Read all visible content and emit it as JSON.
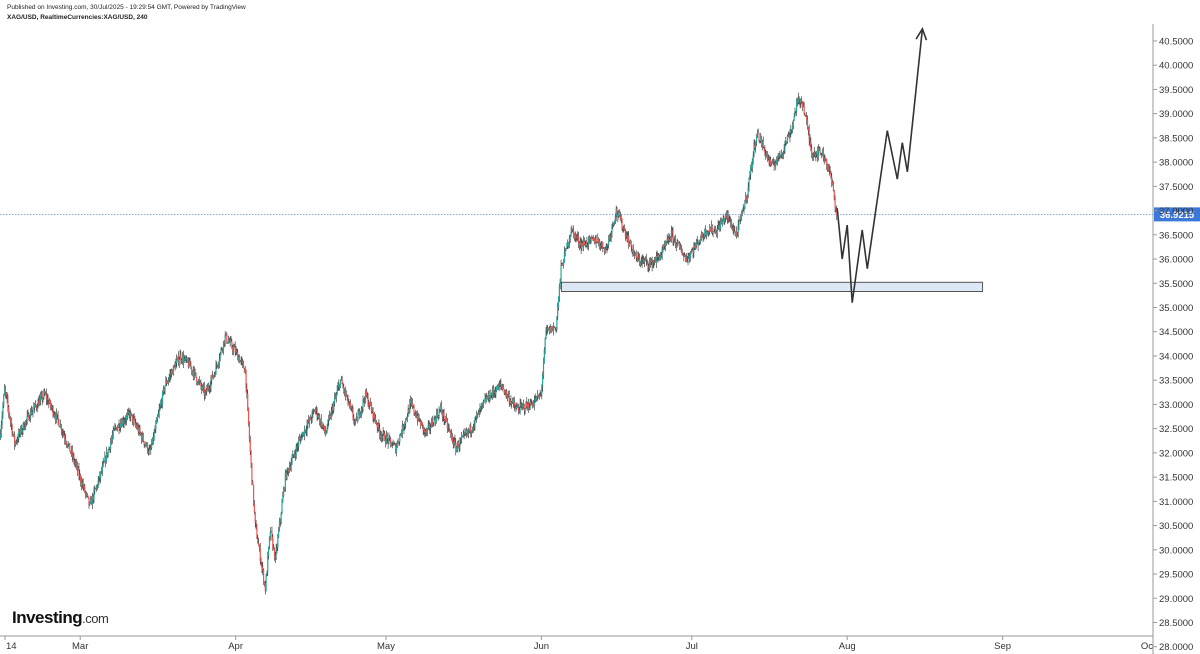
{
  "header": {
    "published": "Published on Investing.com, 30/Jul/2025 - 19:29:54 GMT, Powered by TradingView",
    "symbol_line": "XAG/USD, RealtimeCurrencies:XAG/USD, 240"
  },
  "brand": {
    "name": "Investing",
    "domain": ".com"
  },
  "chart_data": {
    "type": "candlestick",
    "title": "",
    "xlabel": "",
    "ylabel": "",
    "ylim": [
      27.85,
      40.85
    ],
    "y_ticks": [
      "40.5000",
      "40.0000",
      "39.5000",
      "39.0000",
      "38.5000",
      "38.0000",
      "37.5000",
      "37.0000",
      "36.5000",
      "36.0000",
      "35.5000",
      "35.0000",
      "34.5000",
      "34.0000",
      "33.5000",
      "33.0000",
      "32.5000",
      "32.0000",
      "31.5000",
      "31.0000",
      "30.5000",
      "30.0000",
      "29.5000",
      "29.0000",
      "28.5000",
      "28.0000"
    ],
    "x_ticks": [
      "14",
      "Mar",
      "Apr",
      "May",
      "Jun",
      "Jul",
      "Aug",
      "Sep",
      "Oc"
    ],
    "x_tick_dates": [
      "2025-02-14",
      "2025-03-01",
      "2025-04-01",
      "2025-05-01",
      "2025-06-01",
      "2025-07-01",
      "2025-08-01",
      "2025-09-01",
      "2025-10-01"
    ],
    "x_range": [
      "2025-02-13",
      "2025-10-01"
    ],
    "current_price": "36.9215",
    "current_price_value": 36.9215,
    "grid": false,
    "colors": {
      "up": "#26a69a",
      "down": "#ef5350",
      "wick": "#222222",
      "current": "#5b8fd6",
      "projection": "#333333",
      "zone_fill": "#dde8f6",
      "zone_border": "#555555"
    },
    "price_path": [
      [
        "2025-02-13",
        32.3
      ],
      [
        "2025-02-14",
        33.3
      ],
      [
        "2025-02-16",
        32.2
      ],
      [
        "2025-02-19",
        32.8
      ],
      [
        "2025-02-22",
        33.2
      ],
      [
        "2025-02-25",
        32.6
      ],
      [
        "2025-02-28",
        31.8
      ],
      [
        "2025-03-03",
        30.9
      ],
      [
        "2025-03-05",
        31.5
      ],
      [
        "2025-03-08",
        32.5
      ],
      [
        "2025-03-11",
        32.8
      ],
      [
        "2025-03-15",
        32.0
      ],
      [
        "2025-03-18",
        33.4
      ],
      [
        "2025-03-21",
        34.0
      ],
      [
        "2025-03-23",
        33.8
      ],
      [
        "2025-03-26",
        33.2
      ],
      [
        "2025-03-28",
        33.7
      ],
      [
        "2025-03-30",
        34.4
      ],
      [
        "2025-04-01",
        34.1
      ],
      [
        "2025-04-03",
        33.7
      ],
      [
        "2025-04-04",
        32.0
      ],
      [
        "2025-04-05",
        30.5
      ],
      [
        "2025-04-07",
        29.2
      ],
      [
        "2025-04-08",
        30.4
      ],
      [
        "2025-04-09",
        29.8
      ],
      [
        "2025-04-11",
        31.5
      ],
      [
        "2025-04-14",
        32.3
      ],
      [
        "2025-04-17",
        32.9
      ],
      [
        "2025-04-19",
        32.4
      ],
      [
        "2025-04-22",
        33.5
      ],
      [
        "2025-04-25",
        32.6
      ],
      [
        "2025-04-27",
        33.2
      ],
      [
        "2025-04-30",
        32.4
      ],
      [
        "2025-05-03",
        32.1
      ],
      [
        "2025-05-06",
        33.0
      ],
      [
        "2025-05-09",
        32.4
      ],
      [
        "2025-05-12",
        32.9
      ],
      [
        "2025-05-15",
        32.1
      ],
      [
        "2025-05-18",
        32.5
      ],
      [
        "2025-05-21",
        33.1
      ],
      [
        "2025-05-24",
        33.4
      ],
      [
        "2025-05-27",
        32.9
      ],
      [
        "2025-05-30",
        33.0
      ],
      [
        "2025-06-01",
        33.2
      ],
      [
        "2025-06-02",
        34.5
      ],
      [
        "2025-06-04",
        34.6
      ],
      [
        "2025-06-05",
        35.8
      ],
      [
        "2025-06-07",
        36.6
      ],
      [
        "2025-06-09",
        36.3
      ],
      [
        "2025-06-12",
        36.4
      ],
      [
        "2025-06-14",
        36.2
      ],
      [
        "2025-06-16",
        37.0
      ],
      [
        "2025-06-18",
        36.5
      ],
      [
        "2025-06-20",
        36.0
      ],
      [
        "2025-06-23",
        35.9
      ],
      [
        "2025-06-25",
        36.1
      ],
      [
        "2025-06-27",
        36.5
      ],
      [
        "2025-06-30",
        36.0
      ],
      [
        "2025-07-02",
        36.3
      ],
      [
        "2025-07-04",
        36.6
      ],
      [
        "2025-07-06",
        36.6
      ],
      [
        "2025-07-08",
        36.9
      ],
      [
        "2025-07-10",
        36.5
      ],
      [
        "2025-07-12",
        37.3
      ],
      [
        "2025-07-14",
        38.6
      ],
      [
        "2025-07-15",
        38.4
      ],
      [
        "2025-07-17",
        37.9
      ],
      [
        "2025-07-19",
        38.2
      ],
      [
        "2025-07-21",
        38.7
      ],
      [
        "2025-07-22",
        39.2
      ],
      [
        "2025-07-23",
        39.3
      ],
      [
        "2025-07-24",
        38.8
      ],
      [
        "2025-07-25",
        38.2
      ],
      [
        "2025-07-27",
        38.2
      ],
      [
        "2025-07-28",
        38.0
      ],
      [
        "2025-07-29",
        37.6
      ],
      [
        "2025-07-30",
        36.92
      ]
    ],
    "support_zone": {
      "low": 35.33,
      "high": 35.52,
      "start": "2025-06-05",
      "end": "2025-08-28"
    },
    "projection": [
      [
        "2025-07-30",
        37.05
      ],
      [
        "2025-07-31",
        36.0
      ],
      [
        "2025-08-01",
        36.7
      ],
      [
        "2025-08-02",
        35.1
      ],
      [
        "2025-08-04",
        36.6
      ],
      [
        "2025-08-05",
        35.8
      ],
      [
        "2025-08-09",
        38.65
      ],
      [
        "2025-08-11",
        37.65
      ],
      [
        "2025-08-12",
        38.4
      ],
      [
        "2025-08-13",
        37.8
      ],
      [
        "2025-08-16",
        40.75
      ]
    ]
  }
}
